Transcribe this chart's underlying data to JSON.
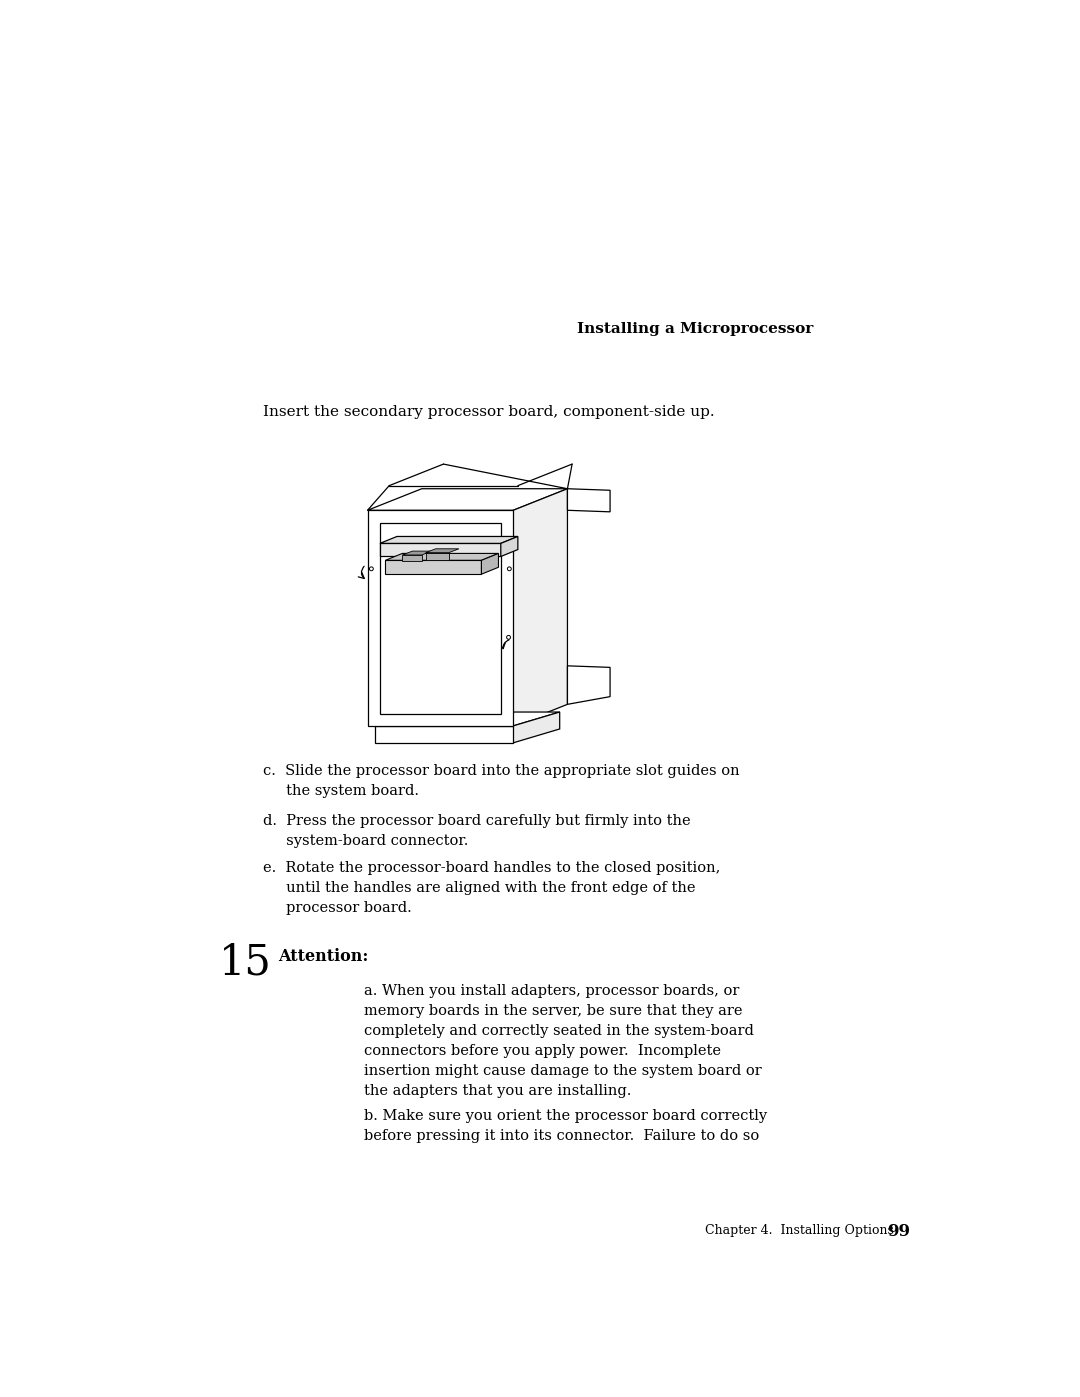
{
  "bg_color": "#ffffff",
  "text_color": "#000000",
  "header_text": "Installing a Microprocessor",
  "insert_text": "Insert the secondary processor board, component-side up.",
  "step_number": "15",
  "attention_label": "Attention:",
  "attention_a": "a. When you install adapters, processor boards, or\nmemory boards in the server, be sure that they are\ncompletely and correctly seated in the system-board\nconnectors before you apply power.  Incomplete\ninsertion might cause damage to the system board or\nthe adapters that you are installing.",
  "attention_b": "b. Make sure you orient the processor board correctly\nbefore pressing it into its connector.  Failure to do so",
  "footer_text": "Chapter 4.  Installing Options",
  "page_number": "99",
  "line_color": "#000000",
  "gray_chip": "#b0b0b0",
  "gray_side": "#d0d0d0",
  "item_c_line1": "c.  Slide the processor board into the appropriate slot guides on",
  "item_c_line2": "     the system board.",
  "item_d_line1": "d.  Press the processor board carefully but firmly into the",
  "item_d_line2": "     system-board connector.",
  "item_e_line1": "e.  Rotate the processor-board handles to the closed position,",
  "item_e_line2": "     until the handles are aligned with the front edge of the",
  "item_e_line3": "     processor board."
}
